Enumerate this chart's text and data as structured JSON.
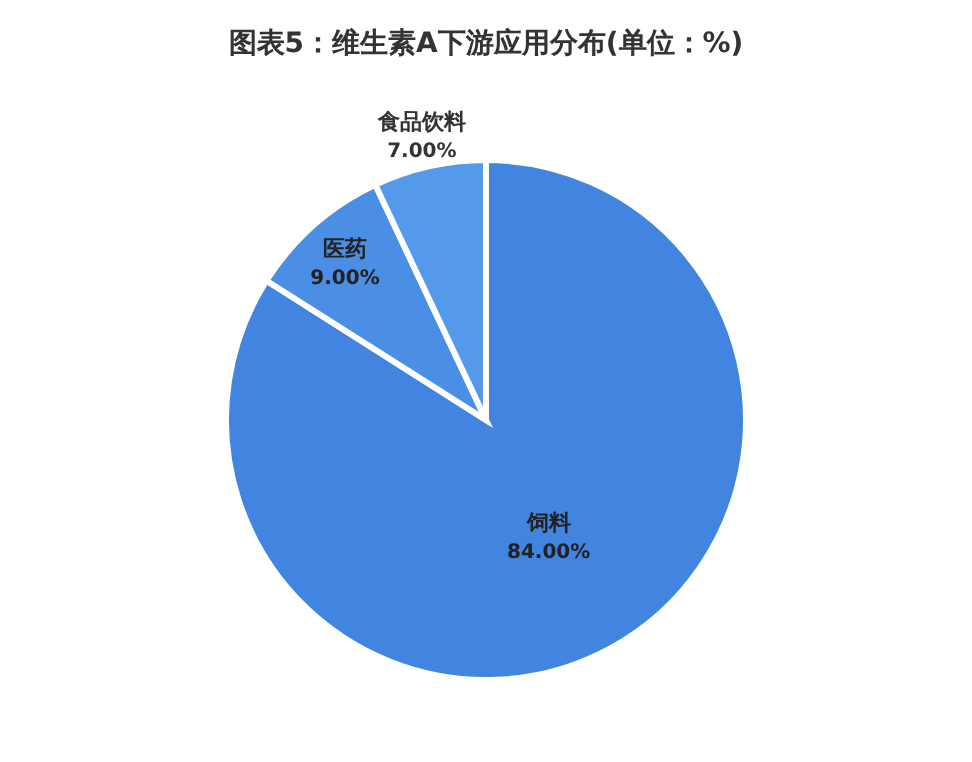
{
  "chart_data": {
    "type": "pie",
    "title": "图表5：维生素A下游应用分布(单位：%)",
    "categories": [
      "饲料",
      "医药",
      "食品饮料"
    ],
    "values": [
      84,
      9,
      7
    ],
    "value_labels": [
      "84.00%",
      "9.00%",
      "7.00%"
    ],
    "colors": [
      "#4285e0",
      "#4a8fe3",
      "#5599ea"
    ],
    "legend": false
  }
}
